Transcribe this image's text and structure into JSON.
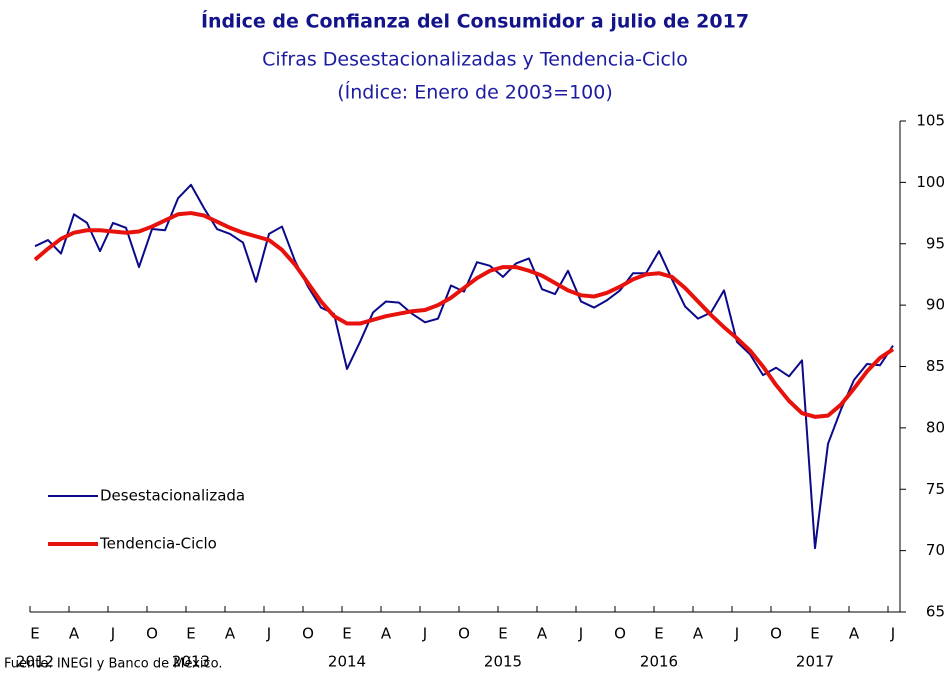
{
  "chart_data": {
    "type": "line",
    "title": "Índice de Confianza del Consumidor a julio de 2017",
    "subtitle": "Cifras Desestacionalizadas y Tendencia-Ciclo",
    "subtitle2": "(Índice: Enero de 2003=100)",
    "source": "Fuente: INEGI y Banco de México.",
    "categories": [
      "E",
      null,
      null,
      "A",
      null,
      null,
      "J",
      null,
      null,
      "O",
      null,
      null,
      "E",
      null,
      null,
      "A",
      null,
      null,
      "J",
      null,
      null,
      "O",
      null,
      null,
      "E",
      null,
      null,
      "A",
      null,
      null,
      "J",
      null,
      null,
      "O",
      null,
      null,
      "E",
      null,
      null,
      "A",
      null,
      null,
      "J",
      null,
      null,
      "O",
      null,
      null,
      "E",
      null,
      null,
      "A",
      null,
      null,
      "J",
      null,
      null,
      "O",
      null,
      null,
      "E",
      null,
      null,
      "A",
      null,
      null,
      "J"
    ],
    "year_labels": [
      "2012",
      null,
      null,
      null,
      null,
      null,
      null,
      null,
      null,
      null,
      null,
      null,
      "2013",
      null,
      null,
      null,
      null,
      null,
      null,
      null,
      null,
      null,
      null,
      null,
      "2014",
      null,
      null,
      null,
      null,
      null,
      null,
      null,
      null,
      null,
      null,
      null,
      "2015",
      null,
      null,
      null,
      null,
      null,
      null,
      null,
      null,
      null,
      null,
      null,
      "2016",
      null,
      null,
      null,
      null,
      null,
      null,
      null,
      null,
      null,
      null,
      null,
      "2017",
      null,
      null,
      null,
      null,
      null,
      null
    ],
    "series": [
      {
        "name": "Desestacionalizada",
        "color": "#0a0a8a",
        "width": 2,
        "values": [
          94.8,
          95.3,
          94.2,
          97.4,
          96.7,
          94.4,
          96.7,
          96.3,
          93.1,
          96.2,
          96.1,
          98.7,
          99.8,
          97.9,
          96.2,
          95.8,
          95.1,
          91.9,
          95.8,
          96.4,
          93.6,
          91.5,
          89.8,
          89.3,
          84.8,
          87.0,
          89.4,
          90.3,
          90.2,
          89.3,
          88.6,
          88.9,
          91.6,
          91.1,
          93.5,
          93.2,
          92.3,
          93.4,
          93.8,
          91.3,
          90.9,
          92.8,
          90.3,
          89.8,
          90.4,
          91.2,
          92.6,
          92.6,
          94.4,
          92.1,
          89.9,
          88.9,
          89.4,
          91.2,
          87.0,
          86.0,
          84.3,
          84.9,
          84.2,
          85.5,
          70.2,
          78.7,
          81.5,
          83.9,
          85.2,
          85.1,
          86.7
        ]
      },
      {
        "name": "Tendencia-Ciclo",
        "color": "#e8120c",
        "width": 4,
        "values": [
          93.7,
          94.6,
          95.4,
          95.9,
          96.1,
          96.1,
          96.0,
          95.9,
          96.0,
          96.4,
          96.9,
          97.4,
          97.5,
          97.3,
          96.8,
          96.3,
          95.9,
          95.6,
          95.3,
          94.5,
          93.3,
          91.8,
          90.3,
          89.1,
          88.5,
          88.5,
          88.8,
          89.1,
          89.3,
          89.5,
          89.6,
          90.0,
          90.6,
          91.4,
          92.2,
          92.8,
          93.1,
          93.1,
          92.8,
          92.4,
          91.8,
          91.2,
          90.8,
          90.7,
          91.0,
          91.5,
          92.1,
          92.5,
          92.6,
          92.3,
          91.4,
          90.3,
          89.2,
          88.2,
          87.3,
          86.3,
          85.0,
          83.5,
          82.2,
          81.2,
          80.9,
          81.0,
          81.9,
          83.2,
          84.6,
          85.7,
          86.4
        ]
      }
    ],
    "ylim": [
      65,
      105
    ],
    "yticks": [
      65,
      70,
      75,
      80,
      85,
      90,
      95,
      100,
      105
    ],
    "y_axis_side": "right",
    "grid": false
  }
}
